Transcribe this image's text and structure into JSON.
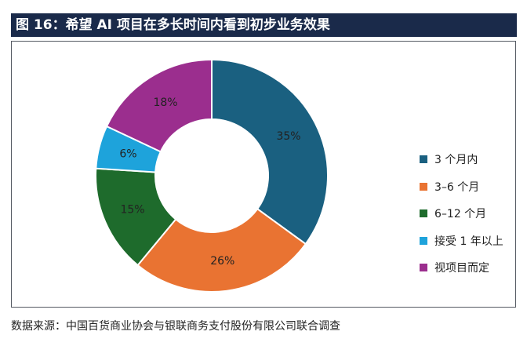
{
  "title": "图 16：希望 AI 项目在多长时间内看到初步业务效果",
  "source": "数据来源：中国百货商业协会与银联商务支付股份有限公司联合调查",
  "chart_data": {
    "type": "pie",
    "donut": true,
    "legend_position": "right",
    "slices": [
      {
        "label": "3 个月内",
        "value": 35,
        "display": "35%",
        "color": "#1a6080"
      },
      {
        "label": "3–6 个月",
        "value": 26,
        "display": "26%",
        "color": "#e97332"
      },
      {
        "label": "6–12 个月",
        "value": 15,
        "display": "15%",
        "color": "#1e6b2c"
      },
      {
        "label": "接受 1 年以上",
        "value": 6,
        "display": "6%",
        "color": "#1ea3db"
      },
      {
        "label": "视项目而定",
        "value": 18,
        "display": "18%",
        "color": "#9b2e8e"
      }
    ]
  }
}
